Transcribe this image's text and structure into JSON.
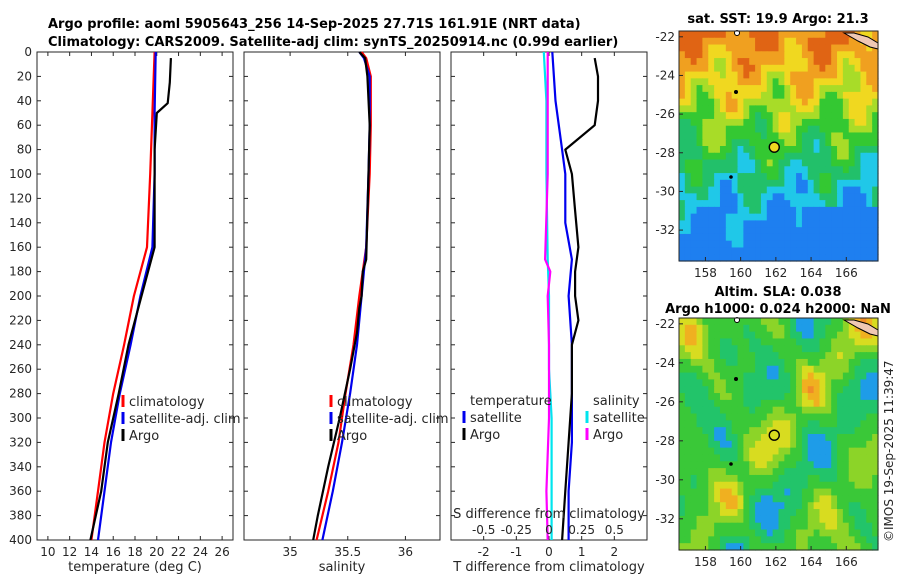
{
  "title": {
    "line1": "Argo profile: aoml 5905643_256 14-Sep-2025 27.71S 161.91E (NRT data)",
    "line2": "Climatology: CARS2009. Satellite-adj clim: synTS_20250914.nc (0.99d earlier)"
  },
  "credit": "©IMOS 19-Sep-2025 11:39:47",
  "colors": {
    "climatology": "#ff0000",
    "satellite": "#0000ee",
    "argo": "#000000",
    "s_satellite": "#00e5ee",
    "s_argo": "#ff00ff"
  },
  "chart_data": [
    {
      "type": "line",
      "name": "temperature-profile",
      "xlabel": "temperature (deg C)",
      "ylabel": "",
      "xlim": [
        9,
        27
      ],
      "ylim": [
        400,
        0
      ],
      "xticks": [
        10,
        12,
        14,
        16,
        18,
        20,
        22,
        24,
        26
      ],
      "yticks": [
        0,
        20,
        40,
        60,
        80,
        100,
        120,
        140,
        160,
        180,
        200,
        220,
        240,
        260,
        280,
        300,
        320,
        340,
        360,
        380,
        400
      ],
      "legend": [
        "climatology",
        "satellite-adj. clim",
        "Argo"
      ],
      "series": [
        {
          "name": "climatology",
          "color": "red",
          "depth": [
            0,
            50,
            100,
            160,
            200,
            240,
            280,
            320,
            360,
            400
          ],
          "values": [
            19.8,
            19.6,
            19.4,
            19.1,
            17.9,
            17.0,
            16.0,
            15.2,
            14.6,
            14.0
          ]
        },
        {
          "name": "satellite-adj. clim",
          "color": "blue",
          "depth": [
            0,
            50,
            100,
            160,
            200,
            240,
            280,
            320,
            360,
            400
          ],
          "values": [
            19.9,
            19.8,
            19.8,
            19.6,
            18.5,
            17.6,
            16.6,
            15.8,
            15.2,
            14.6
          ]
        },
        {
          "name": "Argo",
          "color": "black",
          "depth": [
            5,
            25,
            42,
            50,
            80,
            100,
            160,
            200,
            240,
            280,
            320,
            360,
            400
          ],
          "values": [
            21.3,
            21.2,
            21.0,
            20.0,
            19.8,
            19.8,
            19.8,
            18.6,
            17.4,
            16.5,
            15.5,
            14.9,
            13.9
          ]
        }
      ]
    },
    {
      "type": "line",
      "name": "salinity-profile",
      "xlabel": "salinity",
      "ylabel": "",
      "xlim": [
        34.6,
        36.3
      ],
      "ylim": [
        400,
        0
      ],
      "xticks": [
        35,
        35.5,
        36
      ],
      "legend": [
        "climatology",
        "satellite-adj. clim",
        "Argo"
      ],
      "series": [
        {
          "name": "climatology",
          "color": "red",
          "depth": [
            0,
            5,
            20,
            60,
            100,
            160,
            200,
            240,
            280,
            320,
            360,
            400
          ],
          "values": [
            35.62,
            35.66,
            35.7,
            35.7,
            35.69,
            35.66,
            35.6,
            35.55,
            35.48,
            35.42,
            35.33,
            35.23
          ]
        },
        {
          "name": "satellite-adj. clim",
          "color": "blue",
          "depth": [
            0,
            5,
            20,
            60,
            100,
            160,
            200,
            240,
            280,
            320,
            360,
            400
          ],
          "values": [
            35.6,
            35.64,
            35.69,
            35.69,
            35.68,
            35.66,
            35.62,
            35.58,
            35.52,
            35.45,
            35.37,
            35.28
          ]
        },
        {
          "name": "Argo",
          "color": "black",
          "depth": [
            0,
            5,
            20,
            60,
            100,
            170,
            180,
            200,
            210,
            230,
            260,
            300,
            340,
            380,
            400
          ],
          "values": [
            35.6,
            35.65,
            35.67,
            35.69,
            35.68,
            35.66,
            35.63,
            35.62,
            35.6,
            35.58,
            35.52,
            35.43,
            35.33,
            35.24,
            35.2
          ]
        }
      ]
    },
    {
      "type": "line",
      "name": "difference-profile",
      "xlabel": "T difference from climatology",
      "top_xlabel": "S difference from climatology",
      "ylabel": "",
      "xlim": [
        -3,
        3
      ],
      "ylim": [
        400,
        0
      ],
      "xticks": [
        -2,
        -1,
        0,
        1,
        2
      ],
      "top_xticks": [
        "-0.5",
        "-0.25",
        "0",
        "0.25",
        "0.5"
      ],
      "legend_groups": [
        {
          "title": "temperature",
          "items": [
            "satellite",
            "Argo"
          ]
        },
        {
          "title": "salinity",
          "items": [
            "satellite",
            "Argo"
          ]
        }
      ],
      "series": [
        {
          "name": "T satellite",
          "color": "blue",
          "depth": [
            0,
            40,
            80,
            100,
            140,
            170,
            200,
            240,
            280,
            320,
            360,
            400
          ],
          "values": [
            0.1,
            0.2,
            0.4,
            0.5,
            0.5,
            0.7,
            0.6,
            0.7,
            0.7,
            0.7,
            0.6,
            0.6
          ]
        },
        {
          "name": "T Argo",
          "color": "black",
          "depth": [
            5,
            20,
            40,
            60,
            80,
            100,
            130,
            160,
            180,
            200,
            220,
            240,
            280,
            320,
            360,
            400
          ],
          "values": [
            1.4,
            1.5,
            1.5,
            1.4,
            0.5,
            0.7,
            0.8,
            0.9,
            0.8,
            0.8,
            0.9,
            0.7,
            0.7,
            0.6,
            0.5,
            0.4
          ]
        },
        {
          "name": "S satellite",
          "color": "cyan",
          "depth": [
            0,
            40,
            100,
            170,
            200,
            260,
            300,
            360,
            400
          ],
          "values": [
            -0.04,
            -0.02,
            -0.02,
            -0.01,
            0.0,
            0.0,
            0.02,
            0.02,
            0.02
          ]
        },
        {
          "name": "S Argo",
          "color": "magenta",
          "depth": [
            0,
            40,
            100,
            170,
            180,
            200,
            240,
            300,
            360,
            400
          ],
          "values": [
            -0.01,
            -0.01,
            -0.01,
            -0.03,
            0.01,
            -0.01,
            0.0,
            0.0,
            -0.02,
            -0.01
          ]
        }
      ]
    },
    {
      "type": "heatmap",
      "name": "sat-sst-map",
      "title": "sat. SST: 19.9 Argo: 21.3",
      "xticks": [
        158,
        160,
        162,
        164,
        166
      ],
      "yticks": [
        -22,
        -24,
        -26,
        -28,
        -30,
        -32
      ],
      "xlim": [
        156.5,
        167.8
      ],
      "ylim": [
        -33.6,
        -21.7
      ],
      "marker": {
        "lon": 161.91,
        "lat": -27.71
      }
    },
    {
      "type": "heatmap",
      "name": "altim-sla-map",
      "title_line1": "Altim. SLA: 0.038",
      "title_line2": "Argo h1000: 0.024 h2000: NaN",
      "xticks": [
        158,
        160,
        162,
        164,
        166
      ],
      "yticks": [
        -22,
        -24,
        -26,
        -28,
        -30,
        -32
      ],
      "xlim": [
        156.5,
        167.8
      ],
      "ylim": [
        -33.6,
        -21.7
      ],
      "marker": {
        "lon": 161.91,
        "lat": -27.71
      }
    }
  ]
}
